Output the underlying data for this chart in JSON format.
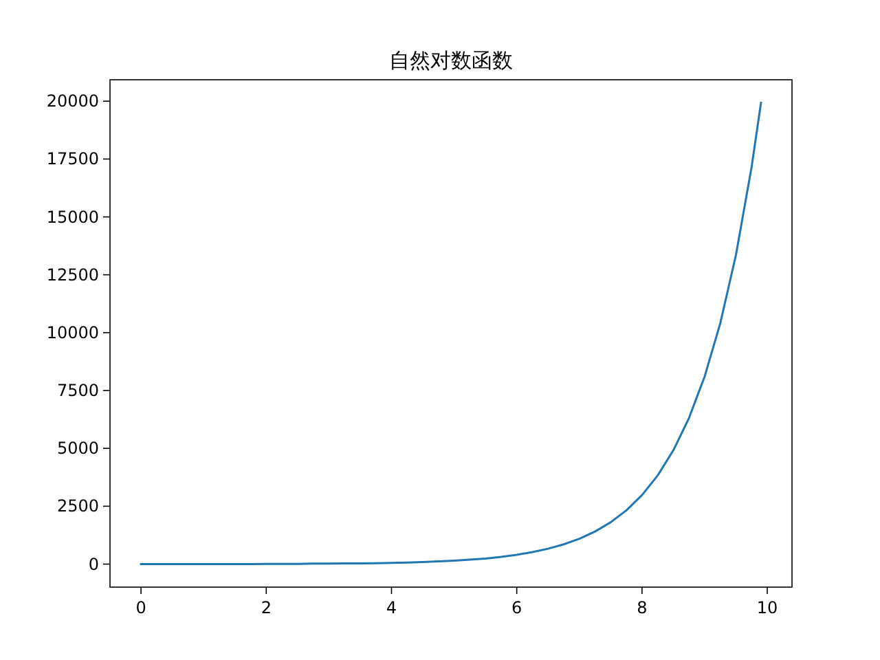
{
  "chart_data": {
    "type": "line",
    "title": "自然对数函数",
    "x": [
      0,
      0.25,
      0.5,
      0.75,
      1,
      1.25,
      1.5,
      1.75,
      2,
      2.25,
      2.5,
      2.75,
      3,
      3.25,
      3.5,
      3.75,
      4,
      4.25,
      4.5,
      4.75,
      5,
      5.25,
      5.5,
      5.75,
      6,
      6.25,
      6.5,
      6.75,
      7,
      7.25,
      7.5,
      7.75,
      8,
      8.25,
      8.5,
      8.75,
      9,
      9.25,
      9.5,
      9.75,
      9.9
    ],
    "series": [
      {
        "color": "#1f77b4",
        "values": [
          0,
          0,
          0,
          0,
          0,
          0,
          0,
          0,
          10,
          10,
          10,
          20,
          20,
          30,
          30,
          40,
          50,
          70,
          90,
          120,
          150,
          190,
          240,
          310,
          400,
          520,
          665,
          854,
          1097,
          1408,
          1808,
          2322,
          2981,
          3828,
          4915,
          6311,
          8103,
          10405,
          13360,
          17154,
          19930
        ]
      }
    ],
    "xlim": [
      -0.495,
      10.395
    ],
    "ylim": [
      -995,
      20926
    ],
    "xticks": [
      0,
      2,
      4,
      6,
      8,
      10
    ],
    "yticks": [
      0,
      2500,
      5000,
      7500,
      10000,
      12500,
      15000,
      17500,
      20000
    ],
    "marker": "none",
    "line_style": "solid"
  }
}
